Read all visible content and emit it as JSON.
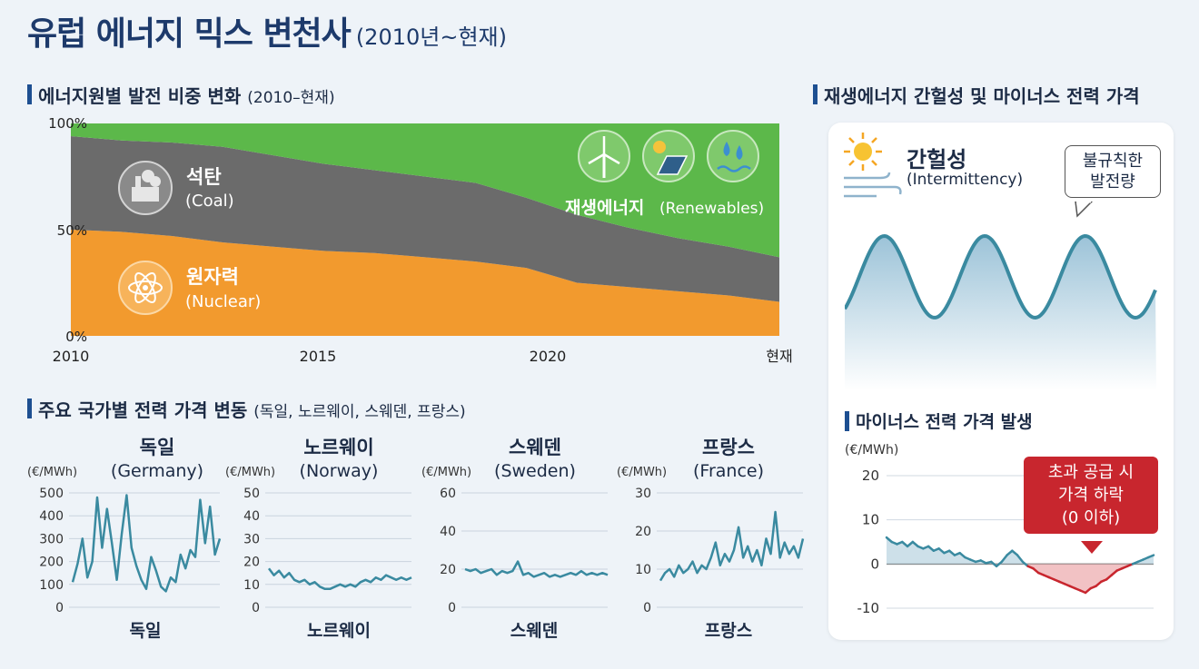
{
  "title": {
    "main": "유럽 에너지 믹스 변천사",
    "sub": "(2010년~현재)"
  },
  "sections": {
    "mix": {
      "title": "에너지원별 발전 비중 변화",
      "paren": "(2010–현재)"
    },
    "prices": {
      "title": "주요 국가별 전력 가격 변동",
      "paren": "(독일, 노르웨이, 스웨덴, 프랑스)"
    },
    "renew": {
      "title": "재생에너지 간헐성 및 마이너스 전력 가격"
    },
    "negative": {
      "title": "마이너스 전력 가격 발생"
    }
  },
  "icons": {
    "coal": "factory-icon",
    "nuclear": "atom-icon",
    "wind": "wind-turbine-icon",
    "solar": "solar-panel-icon",
    "hydro": "water-drop-icon",
    "sun": "sun-icon"
  },
  "colors": {
    "coal": "#6b6b6b",
    "nuclear": "#f29a2e",
    "renewables": "#5cb84a",
    "line": "#3a8aa0",
    "negative": "#c8262e"
  },
  "chart_data": [
    {
      "type": "area",
      "title": "에너지원별 발전 비중 변화 (2010–현재)",
      "x": [
        2010,
        2011,
        2012,
        2013,
        2014,
        2015,
        2016,
        2017,
        2018,
        2019,
        2020,
        2021,
        2022,
        2023,
        2024
      ],
      "xticks": [
        "2010",
        "2015",
        "2020",
        "현재"
      ],
      "yticks": [
        "0%",
        "50%",
        "100%"
      ],
      "ylim": [
        0,
        100
      ],
      "series": [
        {
          "name": "원자력",
          "name_en": "(Nuclear)",
          "values": [
            50,
            49,
            47,
            44,
            42,
            40,
            39,
            37,
            35,
            32,
            25,
            23,
            21,
            19,
            16
          ]
        },
        {
          "name": "석탄",
          "name_en": "(Coal)",
          "values": [
            44,
            43,
            44,
            45,
            43,
            41,
            39,
            38,
            37,
            33,
            32,
            28,
            25,
            23,
            21
          ]
        },
        {
          "name": "재생에너지",
          "name_en": "(Renewables)",
          "values": [
            6,
            8,
            9,
            11,
            15,
            19,
            22,
            25,
            28,
            35,
            43,
            49,
            54,
            58,
            63
          ]
        }
      ]
    },
    {
      "type": "line",
      "country": "독일",
      "country_en": "(Germany)",
      "bottom": "독일",
      "unit": "(€/MWh)",
      "ylim": [
        0,
        500
      ],
      "yticks": [
        "0",
        "100",
        "200",
        "300",
        "400",
        "500"
      ],
      "values": [
        110,
        190,
        300,
        130,
        200,
        480,
        260,
        430,
        280,
        120,
        320,
        490,
        260,
        180,
        120,
        80,
        220,
        160,
        90,
        70,
        130,
        110,
        230,
        170,
        250,
        220,
        470,
        280,
        440,
        230,
        300
      ]
    },
    {
      "type": "line",
      "country": "노르웨이",
      "country_en": "(Norway)",
      "bottom": "노르웨이",
      "unit": "(€/MWh)",
      "ylim": [
        0,
        50
      ],
      "yticks": [
        "0",
        "10",
        "20",
        "30",
        "40",
        "50"
      ],
      "values": [
        17,
        14,
        16,
        13,
        15,
        12,
        11,
        12,
        10,
        11,
        9,
        8,
        8,
        9,
        10,
        9,
        10,
        9,
        11,
        12,
        11,
        13,
        12,
        14,
        13,
        12,
        13,
        12,
        13
      ]
    },
    {
      "type": "line",
      "country": "스웨덴",
      "country_en": "(Sweden)",
      "bottom": "스웨덴",
      "unit": "(€/MWh)",
      "ylim": [
        0,
        60
      ],
      "yticks": [
        "0",
        "20",
        "40",
        "60"
      ],
      "values": [
        20,
        19,
        20,
        18,
        19,
        20,
        17,
        19,
        18,
        19,
        24,
        17,
        18,
        16,
        17,
        18,
        16,
        17,
        16,
        17,
        18,
        17,
        19,
        17,
        18,
        17,
        18,
        17
      ]
    },
    {
      "type": "line",
      "country": "프랑스",
      "country_en": "(France)",
      "bottom": "프랑스",
      "unit": "(€/MWh)",
      "ylim": [
        0,
        30
      ],
      "yticks": [
        "0",
        "10",
        "20",
        "30"
      ],
      "values": [
        7,
        9,
        10,
        8,
        11,
        9,
        10,
        12,
        9,
        11,
        10,
        13,
        17,
        11,
        14,
        12,
        15,
        21,
        13,
        16,
        12,
        15,
        11,
        18,
        14,
        25,
        13,
        17,
        14,
        16,
        13,
        18
      ]
    },
    {
      "type": "line",
      "title": "재생에너지 간헐성",
      "label": "간헐성",
      "label_en": "(Intermittency)",
      "callout": "불규칙한 발전량",
      "cycles": 3.1
    },
    {
      "type": "line",
      "title": "마이너스 전력 가격 발생",
      "unit": "(€/MWh)",
      "ylim": [
        -10,
        20
      ],
      "yticks": [
        "20",
        "10",
        "0",
        "-10"
      ],
      "values": [
        6,
        5,
        4.5,
        5,
        4,
        5,
        4,
        3.5,
        4,
        3,
        3.5,
        2.5,
        3,
        2,
        2.5,
        1.5,
        1,
        0.5,
        0.8,
        0.2,
        0.5,
        -0.5,
        0.5,
        2,
        3,
        2,
        0.5,
        -0.5,
        -1,
        -2,
        -2.5,
        -3,
        -3.5,
        -4,
        -4.5,
        -5,
        -5.5,
        -6,
        -6.5,
        -5.5,
        -5,
        -4,
        -3.5,
        -2.5,
        -1.5,
        -1,
        -0.5,
        0,
        0.5,
        1,
        1.5,
        2
      ],
      "callout": [
        "초과 공급 시",
        "가격 하락",
        "(0 이하)"
      ]
    }
  ]
}
